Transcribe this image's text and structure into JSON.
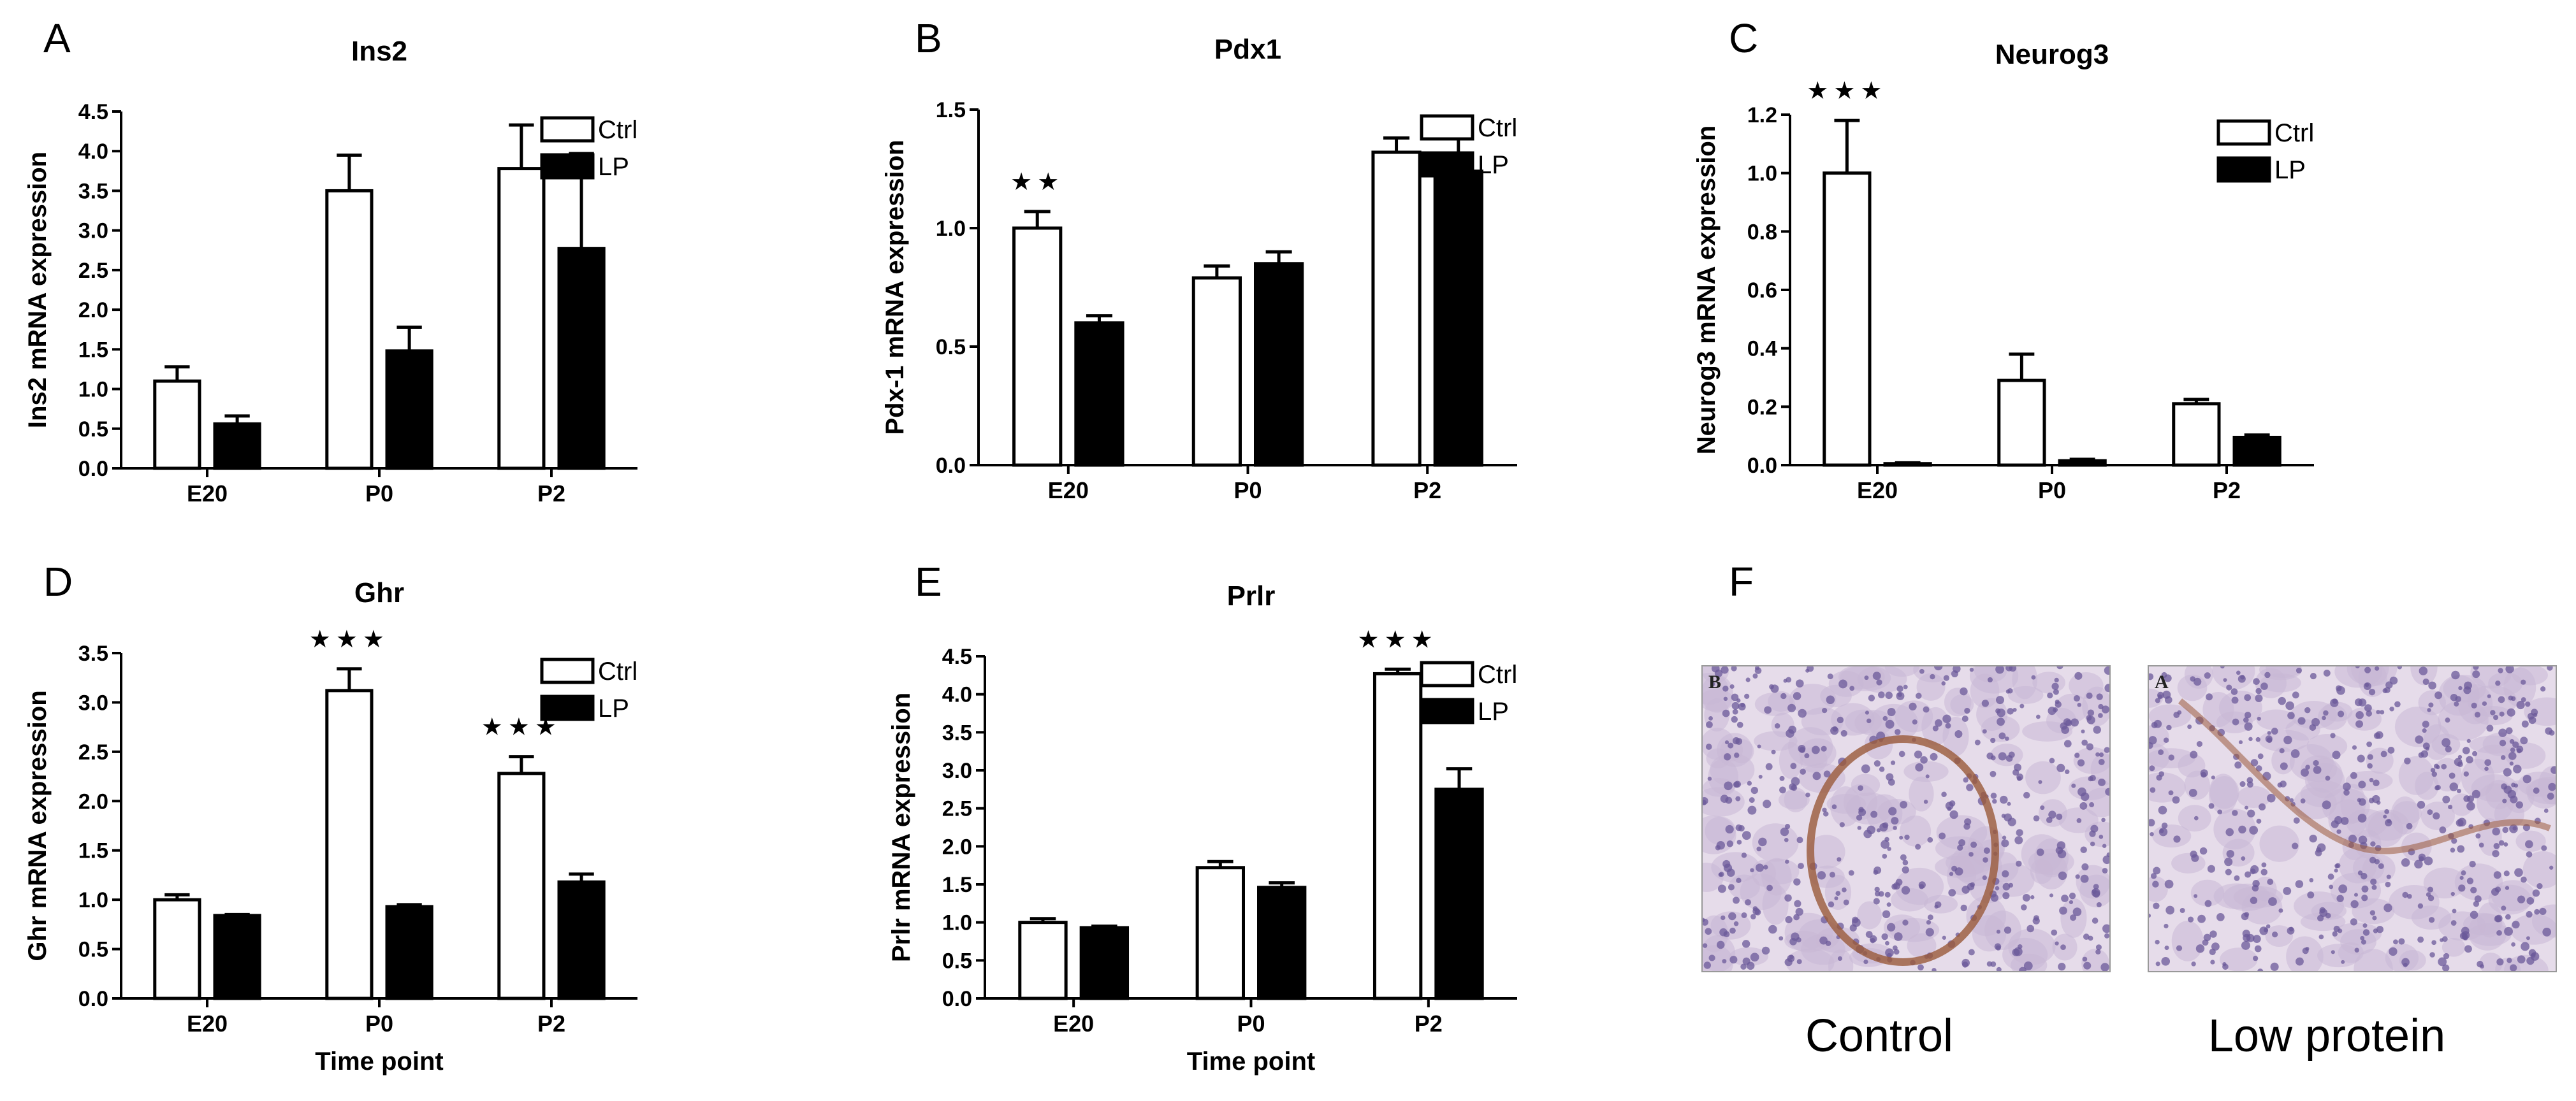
{
  "panel_labels": [
    "A",
    "B",
    "C",
    "D",
    "E",
    "F"
  ],
  "legend_ctrl": "Ctrl",
  "legend_lp": "LP",
  "chart_data": [
    {
      "type": "bar",
      "panel": "A",
      "title": "Ins2",
      "ylabel": "Ins2 mRNA expression",
      "xlabel": "",
      "categories": [
        "E20",
        "P0",
        "P2"
      ],
      "ylim": [
        0,
        4.5
      ],
      "yticks": [
        "0.0",
        "0.5",
        "1.0",
        "1.5",
        "2.0",
        "2.5",
        "3.0",
        "3.5",
        "4.0",
        "4.5"
      ],
      "series": [
        {
          "name": "Ctrl",
          "values": [
            1.1,
            3.5,
            3.78
          ],
          "errors": [
            0.18,
            0.45,
            0.55
          ]
        },
        {
          "name": "LP",
          "values": [
            0.56,
            1.48,
            2.77
          ],
          "errors": [
            0.1,
            0.3,
            1.2
          ]
        }
      ],
      "significance": [
        "",
        "",
        ""
      ],
      "legend": "top-right"
    },
    {
      "type": "bar",
      "panel": "B",
      "title": "Pdx1",
      "ylabel": "Pdx-1 mRNA expression",
      "xlabel": "",
      "categories": [
        "E20",
        "P0",
        "P2"
      ],
      "ylim": [
        0,
        1.5
      ],
      "yticks": [
        "0.0",
        "0.5",
        "1.0",
        "1.5"
      ],
      "series": [
        {
          "name": "Ctrl",
          "values": [
            1.0,
            0.79,
            1.32
          ],
          "errors": [
            0.07,
            0.05,
            0.06
          ]
        },
        {
          "name": "LP",
          "values": [
            0.6,
            0.85,
            1.24
          ],
          "errors": [
            0.03,
            0.05,
            0.14
          ]
        }
      ],
      "significance": [
        "★★",
        "",
        ""
      ],
      "legend": "top-right"
    },
    {
      "type": "bar",
      "panel": "C",
      "title": "Neurog3",
      "ylabel": "Neurog3 mRNA expression",
      "xlabel": "",
      "categories": [
        "E20",
        "P0",
        "P2"
      ],
      "ylim": [
        0,
        1.2
      ],
      "yticks": [
        "0.0",
        "0.2",
        "0.4",
        "0.6",
        "0.8",
        "1.0",
        "1.2"
      ],
      "series": [
        {
          "name": "Ctrl",
          "values": [
            1.0,
            0.29,
            0.21
          ],
          "errors": [
            0.18,
            0.09,
            0.015
          ]
        },
        {
          "name": "LP",
          "values": [
            0.005,
            0.015,
            0.095
          ],
          "errors": [
            0.003,
            0.005,
            0.008
          ]
        }
      ],
      "significance": [
        "★★★",
        "",
        ""
      ],
      "legend": "top-right"
    },
    {
      "type": "bar",
      "panel": "D",
      "title": "Ghr",
      "ylabel": "Ghr mRNA expression",
      "xlabel": "Time point",
      "categories": [
        "E20",
        "P0",
        "P2"
      ],
      "ylim": [
        0,
        3.5
      ],
      "yticks": [
        "0.0",
        "0.5",
        "1.0",
        "1.5",
        "2.0",
        "2.5",
        "3.0",
        "3.5"
      ],
      "series": [
        {
          "name": "Ctrl",
          "values": [
            1.0,
            3.12,
            2.28
          ],
          "errors": [
            0.05,
            0.22,
            0.17
          ]
        },
        {
          "name": "LP",
          "values": [
            0.84,
            0.93,
            1.18
          ],
          "errors": [
            0.01,
            0.02,
            0.08
          ]
        }
      ],
      "significance": [
        "",
        "★★★",
        "★★★"
      ],
      "legend": "top-right"
    },
    {
      "type": "bar",
      "panel": "E",
      "title": "Prlr",
      "ylabel": "Prlr mRNA expression",
      "xlabel": "Time point",
      "categories": [
        "E20",
        "P0",
        "P2"
      ],
      "ylim": [
        0,
        4.5
      ],
      "yticks": [
        "0.0",
        "0.5",
        "1.0",
        "1.5",
        "2.0",
        "2.5",
        "3.0",
        "3.5",
        "4.0",
        "4.5"
      ],
      "series": [
        {
          "name": "Ctrl",
          "values": [
            1.0,
            1.72,
            4.27
          ],
          "errors": [
            0.05,
            0.08,
            0.06
          ]
        },
        {
          "name": "LP",
          "values": [
            0.93,
            1.46,
            2.75
          ],
          "errors": [
            0.02,
            0.06,
            0.27
          ]
        }
      ],
      "significance": [
        "",
        "",
        "★★★"
      ],
      "legend": "top-right"
    }
  ],
  "micrographs": {
    "control_caption": "Control",
    "low_protein_caption": "Low protein",
    "control_corner_letter": "B",
    "low_protein_corner_letter": "A",
    "tissue_color": "#c9b8d6",
    "nuclei_color": "#6b5a9a",
    "stain_color": "#9a5a3a"
  }
}
